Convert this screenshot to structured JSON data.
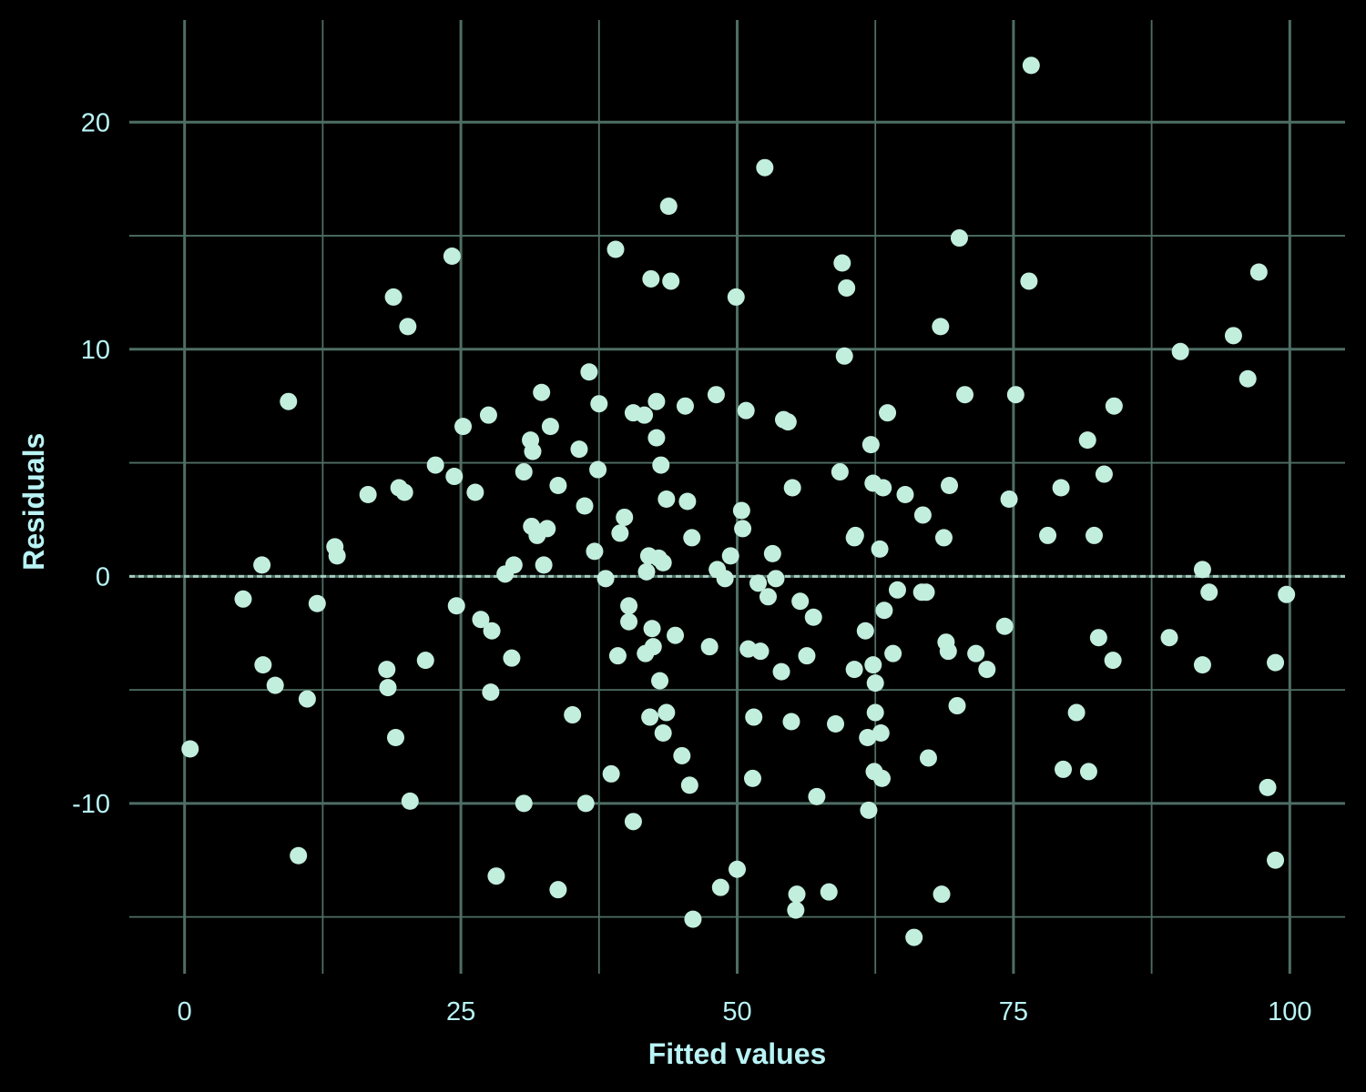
{
  "chart_data": {
    "type": "scatter",
    "title": "",
    "xlabel": "Fitted values",
    "ylabel": "Residuals",
    "xlim": [
      -5,
      105
    ],
    "ylim": [
      -17.5,
      24.5
    ],
    "x_ticks": [
      0,
      25,
      50,
      75,
      100
    ],
    "y_ticks": [
      -10,
      0,
      10,
      20
    ],
    "x_tick_labels": [
      "0",
      "25",
      "50",
      "75",
      "100"
    ],
    "y_tick_labels": [
      "-10",
      "0",
      "10",
      "20"
    ],
    "x_minor": [
      12.5,
      37.5,
      62.5,
      87.5
    ],
    "y_minor": [
      -15,
      -5,
      5,
      15
    ],
    "grid": true,
    "reference_line_y": 0,
    "colors": {
      "background": "#000000",
      "grid": "#4e6e64",
      "point": "#c2eedd",
      "text": "#b9f3f5"
    },
    "points": [
      [
        0.5,
        -7.6
      ],
      [
        5.3,
        -1.0
      ],
      [
        7.0,
        0.5
      ],
      [
        7.1,
        -3.9
      ],
      [
        8.2,
        -4.8
      ],
      [
        9.4,
        7.7
      ],
      [
        10.3,
        -12.3
      ],
      [
        11.1,
        -5.4
      ],
      [
        12.0,
        -1.2
      ],
      [
        13.6,
        1.3
      ],
      [
        13.8,
        0.9
      ],
      [
        16.6,
        3.6
      ],
      [
        18.3,
        -4.1
      ],
      [
        18.4,
        -4.9
      ],
      [
        18.9,
        12.3
      ],
      [
        19.1,
        -7.1
      ],
      [
        19.4,
        3.9
      ],
      [
        19.9,
        3.7
      ],
      [
        20.2,
        11.0
      ],
      [
        20.4,
        -9.9
      ],
      [
        21.8,
        -3.7
      ],
      [
        22.7,
        4.9
      ],
      [
        24.2,
        14.1
      ],
      [
        24.4,
        4.4
      ],
      [
        24.6,
        -1.3
      ],
      [
        25.2,
        6.6
      ],
      [
        26.3,
        3.7
      ],
      [
        26.8,
        -1.9
      ],
      [
        27.5,
        7.1
      ],
      [
        27.7,
        -5.1
      ],
      [
        27.8,
        -2.4
      ],
      [
        28.2,
        -13.2
      ],
      [
        29.0,
        0.1
      ],
      [
        29.6,
        -3.6
      ],
      [
        29.8,
        0.5
      ],
      [
        30.7,
        -10.0
      ],
      [
        30.7,
        4.6
      ],
      [
        31.3,
        6.0
      ],
      [
        31.4,
        2.2
      ],
      [
        31.5,
        5.5
      ],
      [
        31.9,
        1.8
      ],
      [
        32.3,
        8.1
      ],
      [
        32.5,
        0.5
      ],
      [
        32.8,
        2.1
      ],
      [
        33.1,
        6.6
      ],
      [
        33.8,
        4.0
      ],
      [
        33.8,
        -13.8
      ],
      [
        35.1,
        -6.1
      ],
      [
        35.7,
        5.6
      ],
      [
        36.2,
        3.1
      ],
      [
        36.3,
        -10.0
      ],
      [
        36.6,
        9.0
      ],
      [
        37.1,
        1.1
      ],
      [
        37.4,
        4.7
      ],
      [
        37.5,
        7.6
      ],
      [
        38.1,
        -0.1
      ],
      [
        38.6,
        -8.7
      ],
      [
        39.0,
        14.4
      ],
      [
        39.2,
        -3.5
      ],
      [
        39.4,
        1.9
      ],
      [
        39.8,
        2.6
      ],
      [
        40.2,
        -2.0
      ],
      [
        40.2,
        -1.3
      ],
      [
        40.6,
        7.2
      ],
      [
        40.6,
        -10.8
      ],
      [
        41.6,
        7.1
      ],
      [
        41.7,
        -3.4
      ],
      [
        41.8,
        0.2
      ],
      [
        42.0,
        0.9
      ],
      [
        42.1,
        -6.2
      ],
      [
        42.2,
        13.1
      ],
      [
        42.3,
        -2.3
      ],
      [
        42.4,
        -3.1
      ],
      [
        42.7,
        7.7
      ],
      [
        42.7,
        6.1
      ],
      [
        42.9,
        0.8
      ],
      [
        43.0,
        -4.6
      ],
      [
        43.1,
        4.9
      ],
      [
        43.3,
        -6.9
      ],
      [
        43.3,
        0.6
      ],
      [
        43.6,
        -6.0
      ],
      [
        43.6,
        3.4
      ],
      [
        43.8,
        16.3
      ],
      [
        44.0,
        13.0
      ],
      [
        44.4,
        -2.6
      ],
      [
        45.0,
        -7.9
      ],
      [
        45.3,
        7.5
      ],
      [
        45.5,
        3.3
      ],
      [
        45.7,
        -9.2
      ],
      [
        45.9,
        1.7
      ],
      [
        46.0,
        -15.1
      ],
      [
        47.5,
        -3.1
      ],
      [
        48.1,
        8.0
      ],
      [
        48.2,
        0.3
      ],
      [
        48.5,
        -13.7
      ],
      [
        48.9,
        -0.1
      ],
      [
        49.4,
        0.9
      ],
      [
        49.9,
        12.3
      ],
      [
        50.0,
        -12.9
      ],
      [
        50.4,
        2.9
      ],
      [
        50.5,
        2.1
      ],
      [
        50.8,
        7.3
      ],
      [
        51.0,
        -3.2
      ],
      [
        51.4,
        -8.9
      ],
      [
        51.5,
        -6.2
      ],
      [
        51.9,
        -0.3
      ],
      [
        52.1,
        -3.3
      ],
      [
        52.5,
        18.0
      ],
      [
        52.8,
        -0.9
      ],
      [
        53.2,
        1.0
      ],
      [
        53.5,
        -0.1
      ],
      [
        54.0,
        -4.2
      ],
      [
        54.2,
        6.9
      ],
      [
        54.6,
        6.8
      ],
      [
        54.9,
        -6.4
      ],
      [
        55.0,
        3.9
      ],
      [
        55.3,
        -14.7
      ],
      [
        55.4,
        -14.0
      ],
      [
        55.7,
        -1.1
      ],
      [
        56.3,
        -3.5
      ],
      [
        56.9,
        -1.8
      ],
      [
        57.2,
        -9.7
      ],
      [
        58.3,
        -13.9
      ],
      [
        58.9,
        -6.5
      ],
      [
        59.3,
        4.6
      ],
      [
        59.5,
        13.8
      ],
      [
        59.7,
        9.7
      ],
      [
        59.9,
        12.7
      ],
      [
        60.6,
        -4.1
      ],
      [
        60.6,
        1.7
      ],
      [
        60.7,
        1.8
      ],
      [
        61.6,
        -2.4
      ],
      [
        61.8,
        -7.1
      ],
      [
        61.9,
        -10.3
      ],
      [
        62.1,
        5.8
      ],
      [
        62.3,
        4.1
      ],
      [
        62.3,
        -3.9
      ],
      [
        62.4,
        -8.6
      ],
      [
        62.5,
        -6.0
      ],
      [
        62.5,
        -4.7
      ],
      [
        62.9,
        1.2
      ],
      [
        63.0,
        -6.9
      ],
      [
        63.1,
        -8.9
      ],
      [
        63.2,
        3.9
      ],
      [
        63.3,
        -1.5
      ],
      [
        63.6,
        7.2
      ],
      [
        64.1,
        -3.4
      ],
      [
        64.5,
        -0.6
      ],
      [
        65.2,
        3.6
      ],
      [
        66.0,
        -15.9
      ],
      [
        66.7,
        -0.7
      ],
      [
        66.8,
        2.7
      ],
      [
        67.1,
        -0.7
      ],
      [
        67.3,
        -8.0
      ],
      [
        68.4,
        11.0
      ],
      [
        68.5,
        -14.0
      ],
      [
        68.7,
        1.7
      ],
      [
        68.9,
        -2.9
      ],
      [
        69.1,
        -3.3
      ],
      [
        69.2,
        4.0
      ],
      [
        69.9,
        -5.7
      ],
      [
        70.1,
        14.9
      ],
      [
        70.6,
        8.0
      ],
      [
        71.6,
        -3.4
      ],
      [
        72.6,
        -4.1
      ],
      [
        74.2,
        -2.2
      ],
      [
        74.6,
        3.4
      ],
      [
        75.2,
        8.0
      ],
      [
        76.4,
        13.0
      ],
      [
        76.6,
        22.5
      ],
      [
        78.1,
        1.8
      ],
      [
        79.3,
        3.9
      ],
      [
        79.5,
        -8.5
      ],
      [
        80.7,
        -6.0
      ],
      [
        81.7,
        6.0
      ],
      [
        81.8,
        -8.6
      ],
      [
        82.3,
        1.8
      ],
      [
        82.7,
        -2.7
      ],
      [
        83.2,
        4.5
      ],
      [
        84.0,
        -3.7
      ],
      [
        84.1,
        7.5
      ],
      [
        89.1,
        -2.7
      ],
      [
        90.1,
        9.9
      ],
      [
        92.1,
        0.3
      ],
      [
        92.1,
        -3.9
      ],
      [
        92.7,
        -0.7
      ],
      [
        94.9,
        10.6
      ],
      [
        96.2,
        8.7
      ],
      [
        97.2,
        13.4
      ],
      [
        98.0,
        -9.3
      ],
      [
        98.7,
        -3.8
      ],
      [
        98.7,
        -12.5
      ],
      [
        99.7,
        -0.8
      ]
    ]
  }
}
